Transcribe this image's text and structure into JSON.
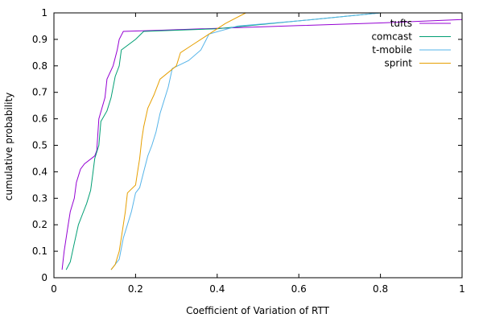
{
  "chart_data": {
    "type": "line",
    "xlabel": "Coefficient of Variation of RTT",
    "ylabel": "cumulative probability",
    "xlim": [
      0,
      1
    ],
    "ylim": [
      0,
      1
    ],
    "x_ticks": [
      "0",
      "0.2",
      "0.4",
      "0.6",
      "0.8",
      "1"
    ],
    "y_ticks": [
      "0",
      "0.1",
      "0.2",
      "0.3",
      "0.4",
      "0.5",
      "0.6",
      "0.7",
      "0.8",
      "0.9",
      "1"
    ],
    "grid": false,
    "legend_position": "top-right",
    "series": [
      {
        "name": "tufts",
        "color": "#9400d3",
        "points": [
          [
            0.02,
            0.03
          ],
          [
            0.025,
            0.1
          ],
          [
            0.03,
            0.15
          ],
          [
            0.035,
            0.2
          ],
          [
            0.04,
            0.25
          ],
          [
            0.05,
            0.3
          ],
          [
            0.055,
            0.36
          ],
          [
            0.065,
            0.41
          ],
          [
            0.075,
            0.43
          ],
          [
            0.1,
            0.46
          ],
          [
            0.105,
            0.48
          ],
          [
            0.11,
            0.6
          ],
          [
            0.125,
            0.68
          ],
          [
            0.13,
            0.75
          ],
          [
            0.145,
            0.8
          ],
          [
            0.155,
            0.86
          ],
          [
            0.16,
            0.9
          ],
          [
            0.17,
            0.93
          ],
          [
            0.25,
            0.934
          ],
          [
            0.6,
            0.952
          ],
          [
            0.8,
            0.962
          ],
          [
            1.0,
            0.975
          ]
        ]
      },
      {
        "name": "comcast",
        "color": "#009e73",
        "points": [
          [
            0.03,
            0.03
          ],
          [
            0.04,
            0.06
          ],
          [
            0.05,
            0.13
          ],
          [
            0.06,
            0.2
          ],
          [
            0.07,
            0.24
          ],
          [
            0.08,
            0.28
          ],
          [
            0.09,
            0.33
          ],
          [
            0.095,
            0.39
          ],
          [
            0.1,
            0.45
          ],
          [
            0.11,
            0.5
          ],
          [
            0.115,
            0.59
          ],
          [
            0.13,
            0.63
          ],
          [
            0.14,
            0.68
          ],
          [
            0.15,
            0.76
          ],
          [
            0.16,
            0.8
          ],
          [
            0.165,
            0.86
          ],
          [
            0.2,
            0.9
          ],
          [
            0.22,
            0.93
          ],
          [
            0.4,
            0.94
          ],
          [
            0.6,
            0.97
          ],
          [
            0.8,
            1.0
          ]
        ]
      },
      {
        "name": "t-mobile",
        "color": "#56b4e9",
        "points": [
          [
            0.14,
            0.03
          ],
          [
            0.16,
            0.07
          ],
          [
            0.17,
            0.15
          ],
          [
            0.18,
            0.2
          ],
          [
            0.19,
            0.25
          ],
          [
            0.2,
            0.32
          ],
          [
            0.21,
            0.34
          ],
          [
            0.22,
            0.4
          ],
          [
            0.23,
            0.46
          ],
          [
            0.24,
            0.5
          ],
          [
            0.25,
            0.55
          ],
          [
            0.26,
            0.62
          ],
          [
            0.28,
            0.72
          ],
          [
            0.29,
            0.79
          ],
          [
            0.33,
            0.82
          ],
          [
            0.36,
            0.86
          ],
          [
            0.38,
            0.92
          ],
          [
            0.45,
            0.95
          ],
          [
            0.6,
            0.97
          ],
          [
            0.8,
            1.0
          ]
        ]
      },
      {
        "name": "sprint",
        "color": "#e69f00",
        "points": [
          [
            0.14,
            0.03
          ],
          [
            0.15,
            0.05
          ],
          [
            0.16,
            0.1
          ],
          [
            0.165,
            0.15
          ],
          [
            0.17,
            0.2
          ],
          [
            0.175,
            0.25
          ],
          [
            0.18,
            0.32
          ],
          [
            0.2,
            0.35
          ],
          [
            0.205,
            0.4
          ],
          [
            0.21,
            0.45
          ],
          [
            0.215,
            0.52
          ],
          [
            0.22,
            0.57
          ],
          [
            0.23,
            0.64
          ],
          [
            0.245,
            0.69
          ],
          [
            0.26,
            0.75
          ],
          [
            0.3,
            0.8
          ],
          [
            0.31,
            0.85
          ],
          [
            0.34,
            0.88
          ],
          [
            0.38,
            0.92
          ],
          [
            0.42,
            0.96
          ],
          [
            0.47,
            1.0
          ]
        ]
      }
    ]
  }
}
